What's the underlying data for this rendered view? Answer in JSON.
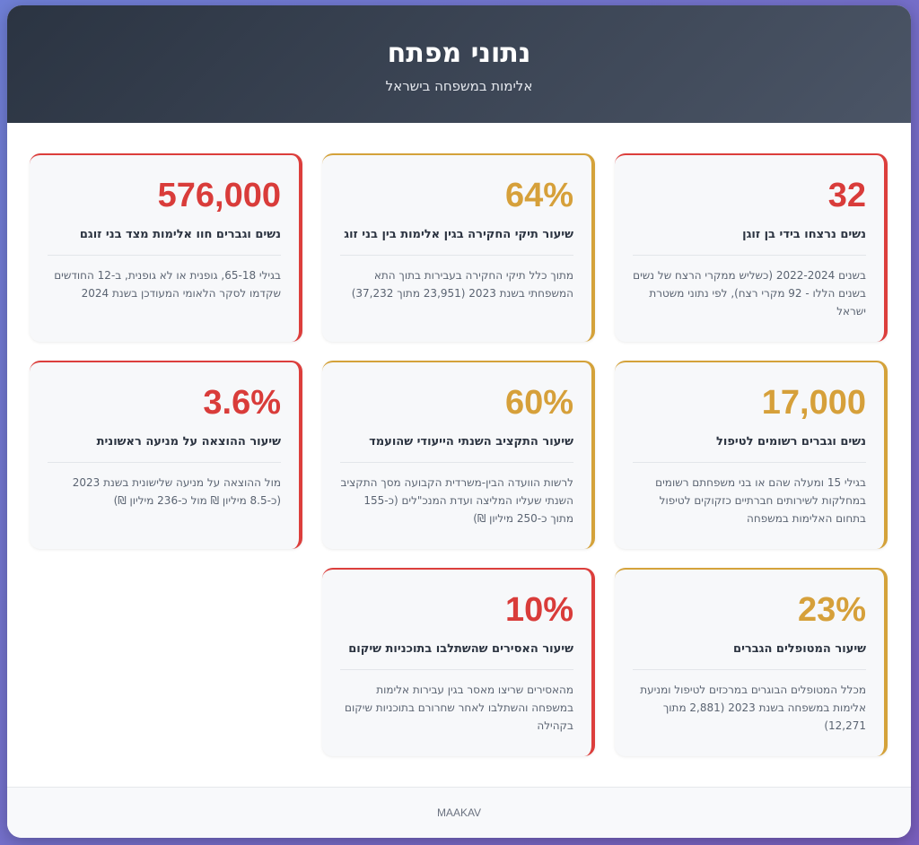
{
  "header": {
    "title": "נתוני מפתח",
    "subtitle": "אלימות במשפחה בישראל"
  },
  "cards": [
    {
      "stat": "32",
      "title": "נשים נרצחו בידי בן זוגן",
      "desc": "בשנים 2022-2024 (כשליש ממקרי הרצח של נשים בשנים הללו - 92 מקרי רצח), לפי נתוני משטרת ישראל",
      "accent": "#dc3e3c"
    },
    {
      "stat": "64%",
      "title": "שיעור תיקי החקירה בגין אלימות בין בני זוג",
      "desc": "מתוך כלל תיקי החקירה בעבירות בתוך התא המשפחתי בשנת 2023 (23,951 מתוך 37,232)",
      "accent": "#d4a23a"
    },
    {
      "stat": "576,000",
      "title": "נשים וגברים חוו אלימות מצד בני זוגם",
      "desc": "בגילי 65-18, גופנית או לא גופנית, ב-12 החודשים שקדמו לסקר הלאומי המעודכן בשנת 2024",
      "accent": "#dc3e3c"
    },
    {
      "stat": "17,000",
      "title": "נשים וגברים רשומים לטיפול",
      "desc": "בגילי 15 ומעלה שהם או בני משפחתם רשומים במחלקות לשירותים חברתיים כזקוקים לטיפול בתחום האלימות במשפחה",
      "accent": "#d4a23a"
    },
    {
      "stat": "60%",
      "title": "שיעור התקציב השנתי הייעודי שהועמד",
      "desc": "לרשות הוועדה הבין-משרדית הקבועה מסך התקציב השנתי שעליו המליצה ועדת המנכ\"לים (כ-155 מתוך כ-250 מיליון ₪)",
      "accent": "#d4a23a"
    },
    {
      "stat": "3.6%",
      "title": "שיעור ההוצאה על מניעה ראשונית",
      "desc": "מול ההוצאה על מניעה שלישונית בשנת 2023 (כ-8.5 מיליון ₪ מול כ-236 מיליון ₪)",
      "accent": "#dc3e3c"
    },
    {
      "stat": "23%",
      "title": "שיעור המטופלים הגברים",
      "desc": "מכלל המטופלים הבוגרים במרכזים לטיפול ומניעת אלימות במשפחה בשנת 2023 (2,881 מתוך 12,271)",
      "accent": "#d4a23a"
    },
    {
      "stat": "10%",
      "title": "שיעור האסירים שהשתלבו בתוכניות שיקום",
      "desc": "מהאסירים שריצו מאסר בגין עבירות אלימות במשפחה והשתלבו לאחר שחרורם בתוכניות שיקום בקהילה",
      "accent": "#dc3e3c"
    }
  ],
  "footer": {
    "text": "MAAKAV"
  }
}
